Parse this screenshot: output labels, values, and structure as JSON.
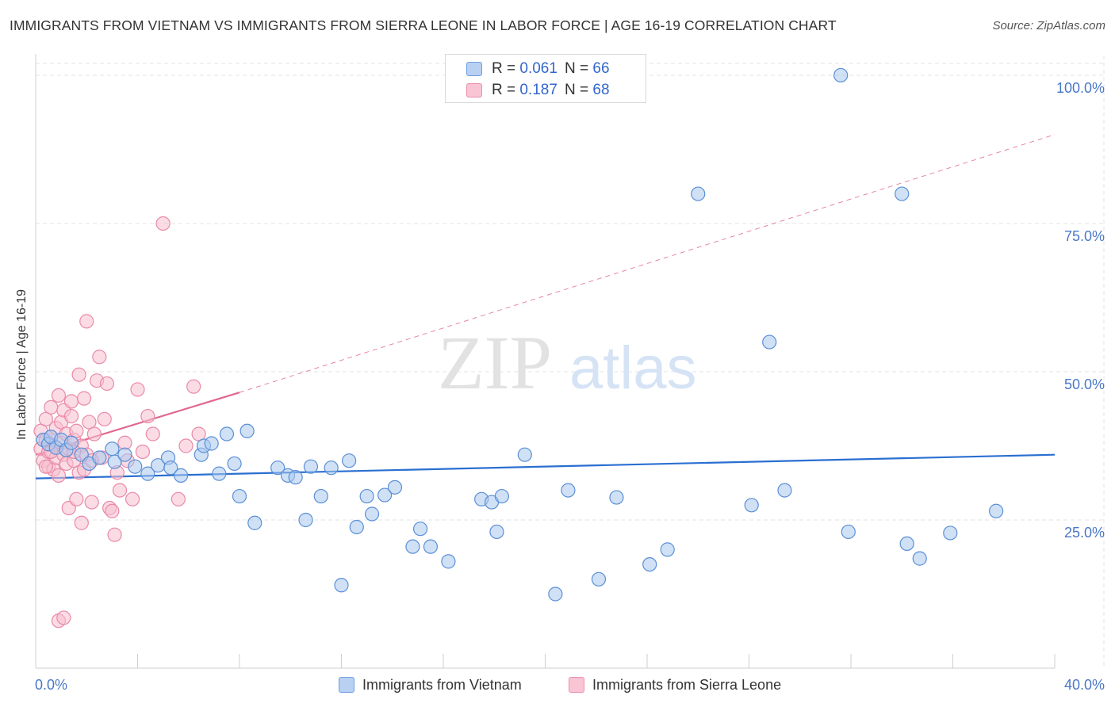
{
  "title": "IMMIGRANTS FROM VIETNAM VS IMMIGRANTS FROM SIERRA LEONE IN LABOR FORCE | AGE 16-19 CORRELATION CHART",
  "source": "Source: ZipAtlas.com",
  "watermark": {
    "zip": "ZIP",
    "atlas": "atlas"
  },
  "legend": {
    "r_label": "R =",
    "n_label": "N =",
    "rows": [
      {
        "r": "0.061",
        "n": "66",
        "fill": "#b8d0f2",
        "stroke": "#6f9ee0"
      },
      {
        "r": "0.187",
        "n": "68",
        "fill": "#f9c4d3",
        "stroke": "#eb8fab"
      }
    ]
  },
  "colors": {
    "blue_fill": "#a9c8ee",
    "blue_stroke": "#5b8fd6",
    "blue_line": "#2a6fd1",
    "pink_fill": "#f7bfd0",
    "pink_stroke": "#e98aa8",
    "pink_line": "#e0688f",
    "axis_text": "#4a78c8",
    "grid": "#e3e3e3"
  },
  "chart_data": {
    "type": "scatter",
    "title": "IMMIGRANTS FROM VIETNAM VS IMMIGRANTS FROM SIERRA LEONE IN LABOR FORCE | AGE 16-19 CORRELATION CHART",
    "xlabel": "",
    "ylabel": "In Labor Force | Age 16-19",
    "xlim": [
      0,
      40
    ],
    "ylim": [
      0,
      102
    ],
    "x_tick_labels": [
      "0.0%",
      "40.0%"
    ],
    "y_ticks": [
      25,
      50,
      75,
      100
    ],
    "y_tick_labels": [
      "25.0%",
      "50.0%",
      "75.0%",
      "100.0%"
    ],
    "grid": true,
    "series": [
      {
        "name": "Immigrants from Vietnam",
        "r": 0.061,
        "n": 66,
        "trend": {
          "x0": 0,
          "y0": 32.0,
          "x1": 40,
          "y1": 36.0,
          "style": "solid"
        },
        "points": [
          [
            0.3,
            38.5
          ],
          [
            0.5,
            37.8
          ],
          [
            0.6,
            39.0
          ],
          [
            0.8,
            37.2
          ],
          [
            1.0,
            38.5
          ],
          [
            1.2,
            36.8
          ],
          [
            1.4,
            38.0
          ],
          [
            1.8,
            36.0
          ],
          [
            2.1,
            34.5
          ],
          [
            2.5,
            35.5
          ],
          [
            3.0,
            37.0
          ],
          [
            3.1,
            34.8
          ],
          [
            3.5,
            36.0
          ],
          [
            3.9,
            34.0
          ],
          [
            4.4,
            32.8
          ],
          [
            4.8,
            34.2
          ],
          [
            5.2,
            35.5
          ],
          [
            5.3,
            33.8
          ],
          [
            5.7,
            32.5
          ],
          [
            6.5,
            36.0
          ],
          [
            6.6,
            37.5
          ],
          [
            6.9,
            37.9
          ],
          [
            7.2,
            32.8
          ],
          [
            7.5,
            39.5
          ],
          [
            7.8,
            34.5
          ],
          [
            8.0,
            29.0
          ],
          [
            8.3,
            40.0
          ],
          [
            8.6,
            24.5
          ],
          [
            9.5,
            33.8
          ],
          [
            9.9,
            32.5
          ],
          [
            10.2,
            32.2
          ],
          [
            10.6,
            25.0
          ],
          [
            10.8,
            34.0
          ],
          [
            11.2,
            29.0
          ],
          [
            11.6,
            33.8
          ],
          [
            12.0,
            14.0
          ],
          [
            12.3,
            35.0
          ],
          [
            12.6,
            23.8
          ],
          [
            13.0,
            29.0
          ],
          [
            13.2,
            26.0
          ],
          [
            13.7,
            29.2
          ],
          [
            14.1,
            30.5
          ],
          [
            14.8,
            20.5
          ],
          [
            15.1,
            23.5
          ],
          [
            15.5,
            20.5
          ],
          [
            16.2,
            18.0
          ],
          [
            17.5,
            28.5
          ],
          [
            17.9,
            28.0
          ],
          [
            18.1,
            23.0
          ],
          [
            18.3,
            29.0
          ],
          [
            19.2,
            36.0
          ],
          [
            20.4,
            12.5
          ],
          [
            20.9,
            30.0
          ],
          [
            22.1,
            15.0
          ],
          [
            22.8,
            28.8
          ],
          [
            24.1,
            17.5
          ],
          [
            24.8,
            20.0
          ],
          [
            26.0,
            80.0
          ],
          [
            28.1,
            27.5
          ],
          [
            28.8,
            55.0
          ],
          [
            29.4,
            30.0
          ],
          [
            31.6,
            100.0
          ],
          [
            31.9,
            23.0
          ],
          [
            34.0,
            80.0
          ],
          [
            34.2,
            21.0
          ],
          [
            34.7,
            18.5
          ],
          [
            35.9,
            22.8
          ],
          [
            37.7,
            26.5
          ]
        ]
      },
      {
        "name": "Immigrants from Sierra Leone",
        "r": 0.187,
        "n": 68,
        "trend": {
          "x0": 0,
          "y0": 36.0,
          "x1": 8,
          "y1": 46.5,
          "style": "solid",
          "extend_to": {
            "x": 40,
            "y": 90.0,
            "style": "dashed"
          }
        },
        "points": [
          [
            0.2,
            40.0
          ],
          [
            0.2,
            37.0
          ],
          [
            0.3,
            35.0
          ],
          [
            0.4,
            38.5
          ],
          [
            0.4,
            42.0
          ],
          [
            0.5,
            36.5
          ],
          [
            0.5,
            34.0
          ],
          [
            0.6,
            39.0
          ],
          [
            0.6,
            44.0
          ],
          [
            0.7,
            33.5
          ],
          [
            0.7,
            37.5
          ],
          [
            0.8,
            35.5
          ],
          [
            0.8,
            40.5
          ],
          [
            0.9,
            46.0
          ],
          [
            0.9,
            32.5
          ],
          [
            1.0,
            38.0
          ],
          [
            1.0,
            41.5
          ],
          [
            1.1,
            36.0
          ],
          [
            1.1,
            43.5
          ],
          [
            1.2,
            34.5
          ],
          [
            1.2,
            39.5
          ],
          [
            1.3,
            37.0
          ],
          [
            1.3,
            27.0
          ],
          [
            1.4,
            45.0
          ],
          [
            1.4,
            42.5
          ],
          [
            1.5,
            35.0
          ],
          [
            1.5,
            38.5
          ],
          [
            1.6,
            40.0
          ],
          [
            1.6,
            28.5
          ],
          [
            1.7,
            33.0
          ],
          [
            1.7,
            49.5
          ],
          [
            1.8,
            24.5
          ],
          [
            1.8,
            37.5
          ],
          [
            1.9,
            45.5
          ],
          [
            2.0,
            58.5
          ],
          [
            2.0,
            36.0
          ],
          [
            2.1,
            41.5
          ],
          [
            2.2,
            28.0
          ],
          [
            2.3,
            39.5
          ],
          [
            2.4,
            48.5
          ],
          [
            2.5,
            52.5
          ],
          [
            2.6,
            35.5
          ],
          [
            2.7,
            42.0
          ],
          [
            2.8,
            48.0
          ],
          [
            2.9,
            27.0
          ],
          [
            3.0,
            26.5
          ],
          [
            3.1,
            22.5
          ],
          [
            3.2,
            33.0
          ],
          [
            3.3,
            30.0
          ],
          [
            3.5,
            38.0
          ],
          [
            3.6,
            35.0
          ],
          [
            3.8,
            28.5
          ],
          [
            4.0,
            47.0
          ],
          [
            4.2,
            36.5
          ],
          [
            4.4,
            42.5
          ],
          [
            4.6,
            39.5
          ],
          [
            5.0,
            75.0
          ],
          [
            5.6,
            28.5
          ],
          [
            5.9,
            37.5
          ],
          [
            6.2,
            47.5
          ],
          [
            6.4,
            39.5
          ],
          [
            0.9,
            8.0
          ],
          [
            1.1,
            8.5
          ],
          [
            0.6,
            36.5
          ],
          [
            1.9,
            33.5
          ],
          [
            2.2,
            35.0
          ],
          [
            0.4,
            34.0
          ],
          [
            1.5,
            36.5
          ]
        ]
      }
    ]
  },
  "bottom_legend": {
    "items": [
      {
        "label": "Immigrants from Vietnam"
      },
      {
        "label": "Immigrants from Sierra Leone"
      }
    ]
  }
}
